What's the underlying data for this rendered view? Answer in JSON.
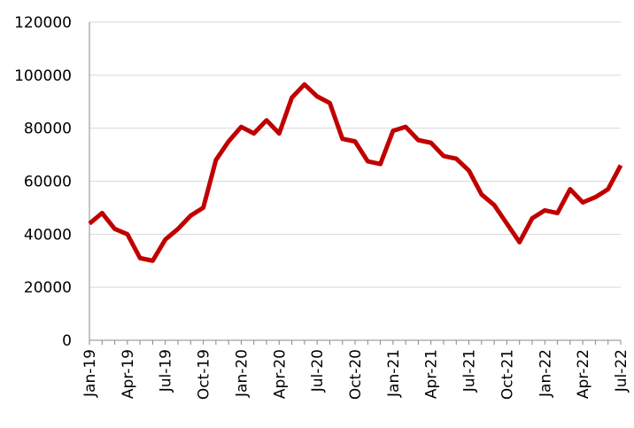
{
  "chart_data": {
    "type": "line",
    "categories": [
      "Jan-19",
      null,
      null,
      "Apr-19",
      null,
      null,
      "Jul-19",
      null,
      null,
      "Oct-19",
      null,
      null,
      "Jan-20",
      null,
      null,
      "Apr-20",
      null,
      null,
      "Jul-20",
      null,
      null,
      "Oct-20",
      null,
      null,
      "Jan-21",
      null,
      null,
      "Apr-21",
      null,
      null,
      "Jul-21",
      null,
      null,
      "Oct-21",
      null,
      null,
      "Jan-22",
      null,
      null,
      "Apr-22",
      null,
      null,
      "Jul-22"
    ],
    "series": [
      {
        "color": "#c00000",
        "values": [
          44000,
          48000,
          42000,
          40000,
          31000,
          30000,
          38000,
          42000,
          47000,
          50000,
          68000,
          75000,
          80500,
          78000,
          83000,
          78000,
          91500,
          96500,
          92000,
          89500,
          76000,
          75000,
          67500,
          66500,
          79000,
          80500,
          75500,
          74500,
          69500,
          68500,
          64000,
          55000,
          51000,
          44000,
          37000,
          46000,
          49000,
          48000,
          57000,
          52000,
          54000,
          57000,
          66000
        ]
      }
    ],
    "ylim": [
      0,
      120000
    ],
    "yticks": [
      0,
      20000,
      40000,
      60000,
      80000,
      100000,
      120000
    ],
    "grid": true
  }
}
